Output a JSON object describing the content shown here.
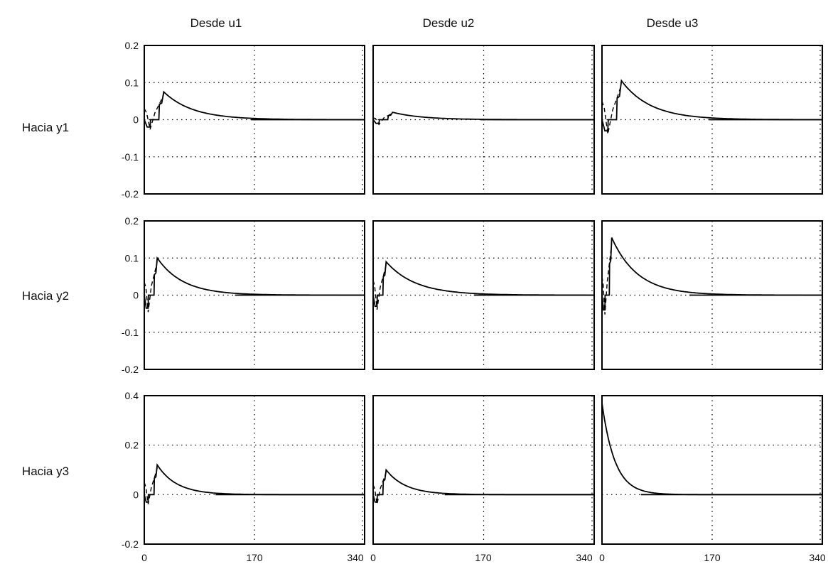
{
  "chart_data": {
    "type": "line",
    "layout": "3x3 grid of step responses",
    "column_titles": [
      "Desde  u1",
      "Desde  u2",
      "Desde  u3"
    ],
    "row_titles": [
      "Hacia  y1",
      "Hacia  y2",
      "Hacia  y3"
    ],
    "x_ticks": [
      0,
      170,
      340
    ],
    "x_tick_labels": [
      "0",
      "170",
      "340"
    ],
    "xlim": [
      0,
      340
    ],
    "grid": true,
    "rows": [
      {
        "ylim": [
          -0.2,
          0.2
        ],
        "y_ticks": [
          -0.2,
          -0.1,
          0,
          0.1,
          0.2
        ],
        "y_tick_labels": [
          "-0.2",
          "-0.1",
          "0",
          "0.1",
          "0.2"
        ],
        "panels": [
          {
            "from": "u1",
            "to": "y1",
            "peak": 0.075,
            "peak_x": 30,
            "tau": 45,
            "pre_max": 0.03,
            "pre_min": -0.02
          },
          {
            "from": "u2",
            "to": "y1",
            "peak": 0.02,
            "peak_x": 30,
            "tau": 45,
            "pre_max": 0.005,
            "pre_min": -0.01
          },
          {
            "from": "u3",
            "to": "y1",
            "peak": 0.105,
            "peak_x": 30,
            "tau": 45,
            "pre_max": 0.05,
            "pre_min": -0.03
          }
        ]
      },
      {
        "ylim": [
          -0.2,
          0.2
        ],
        "y_ticks": [
          -0.2,
          -0.1,
          0,
          0.1,
          0.2
        ],
        "y_tick_labels": [
          "-0.2",
          "-0.1",
          "0",
          "0.1",
          "0.2"
        ],
        "panels": [
          {
            "from": "u1",
            "to": "y2",
            "peak": 0.1,
            "peak_x": 20,
            "tau": 40,
            "pre_max": 0.035,
            "pre_min": -0.035
          },
          {
            "from": "u2",
            "to": "y2",
            "peak": 0.09,
            "peak_x": 20,
            "tau": 45,
            "pre_max": 0.04,
            "pre_min": -0.03
          },
          {
            "from": "u3",
            "to": "y2",
            "peak": 0.155,
            "peak_x": 15,
            "tau": 40,
            "pre_max": 0.05,
            "pre_min": -0.04
          }
        ]
      },
      {
        "ylim": [
          -0.2,
          0.4
        ],
        "y_ticks": [
          -0.2,
          0,
          0.2,
          0.4
        ],
        "y_tick_labels": [
          "-0.2",
          "0",
          "0.2",
          "0.4"
        ],
        "panels": [
          {
            "from": "u1",
            "to": "y3",
            "peak": 0.12,
            "peak_x": 20,
            "tau": 30,
            "pre_max": 0.05,
            "pre_min": -0.03
          },
          {
            "from": "u2",
            "to": "y3",
            "peak": 0.1,
            "peak_x": 20,
            "tau": 30,
            "pre_max": 0.04,
            "pre_min": -0.03
          },
          {
            "from": "u3",
            "to": "y3",
            "peak": 0.37,
            "peak_x": 0,
            "tau": 20,
            "pre_max": 0,
            "pre_min": 0
          }
        ]
      }
    ]
  }
}
